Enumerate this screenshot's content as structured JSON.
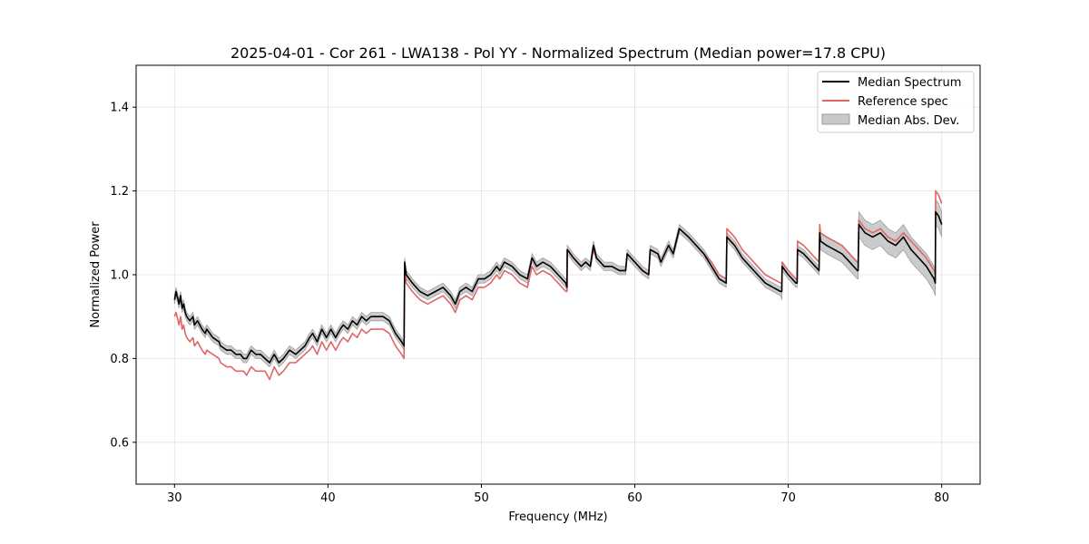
{
  "chart_data": {
    "type": "line",
    "title": "2025-04-01 - Cor 261 - LWA138 - Pol YY - Normalized Spectrum (Median power=17.8 CPU)",
    "xlabel": "Frequency (MHz)",
    "ylabel": "Normalized Power",
    "xlim": [
      27.5,
      82.5
    ],
    "ylim": [
      0.5,
      1.5
    ],
    "xticks": [
      30,
      40,
      50,
      60,
      70,
      80
    ],
    "xtick_labels": [
      "30",
      "40",
      "50",
      "60",
      "70",
      "80"
    ],
    "yticks": [
      0.6,
      0.8,
      1.0,
      1.2,
      1.4
    ],
    "ytick_labels": [
      "0.6",
      "0.8",
      "1.0",
      "1.2",
      "1.4"
    ],
    "grid": true,
    "legend_position": "top-right",
    "colors": {
      "median": "#000000",
      "reference": "#e06666",
      "band": "#c8c8c8",
      "band_edge": "#9e9e9e"
    },
    "series": [
      {
        "name": "Median Spectrum",
        "x": [
          30.0,
          30.1,
          30.3,
          30.4,
          30.5,
          30.6,
          30.7,
          30.8,
          31.0,
          31.2,
          31.3,
          31.5,
          31.8,
          32.0,
          32.1,
          32.5,
          32.9,
          33.0,
          33.4,
          33.7,
          34.0,
          34.3,
          34.5,
          34.7,
          35.0,
          35.3,
          35.6,
          35.9,
          36.2,
          36.5,
          36.8,
          37.1,
          37.5,
          37.9,
          38.2,
          38.5,
          38.8,
          39.0,
          39.3,
          39.6,
          39.9,
          40.2,
          40.5,
          40.8,
          41.0,
          41.3,
          41.6,
          41.9,
          42.2,
          42.5,
          42.8,
          43.2,
          43.6,
          44.0,
          44.4,
          44.8,
          44.96,
          45.0,
          45.1,
          45.5,
          46.0,
          46.5,
          47.0,
          47.5,
          48.0,
          48.3,
          48.6,
          49.0,
          49.4,
          49.8,
          50.2,
          50.6,
          51.0,
          51.2,
          51.5,
          52.0,
          52.5,
          53.0,
          53.3,
          53.6,
          54.0,
          54.5,
          55.0,
          55.5,
          55.58,
          55.6,
          56.0,
          56.5,
          56.8,
          57.1,
          57.3,
          57.5,
          58.0,
          58.5,
          59.0,
          59.4,
          59.5,
          60.0,
          60.5,
          60.9,
          61.0,
          61.5,
          61.7,
          62.2,
          62.5,
          62.9,
          63.5,
          64.0,
          64.5,
          65.0,
          65.5,
          65.95,
          66.0,
          66.5,
          67.0,
          67.5,
          68.0,
          68.5,
          69.0,
          69.5,
          69.58,
          69.6,
          70.0,
          70.5,
          70.58,
          70.6,
          71.0,
          71.5,
          72.0,
          72.05,
          72.1,
          72.5,
          73.0,
          73.5,
          74.0,
          74.5,
          74.55,
          74.6,
          75.0,
          75.5,
          76.0,
          76.5,
          77.0,
          77.5,
          78.0,
          78.5,
          79.0,
          79.5,
          79.58,
          79.6,
          79.8,
          80.0
        ],
        "values": [
          0.94,
          0.96,
          0.93,
          0.95,
          0.92,
          0.93,
          0.91,
          0.9,
          0.89,
          0.9,
          0.88,
          0.89,
          0.87,
          0.86,
          0.87,
          0.85,
          0.84,
          0.83,
          0.82,
          0.82,
          0.81,
          0.81,
          0.8,
          0.8,
          0.82,
          0.81,
          0.81,
          0.8,
          0.79,
          0.81,
          0.79,
          0.8,
          0.82,
          0.81,
          0.82,
          0.83,
          0.85,
          0.86,
          0.84,
          0.87,
          0.85,
          0.87,
          0.85,
          0.87,
          0.88,
          0.87,
          0.89,
          0.88,
          0.9,
          0.89,
          0.9,
          0.9,
          0.9,
          0.89,
          0.86,
          0.84,
          0.83,
          1.03,
          1.0,
          0.98,
          0.96,
          0.95,
          0.96,
          0.97,
          0.95,
          0.93,
          0.96,
          0.97,
          0.96,
          0.99,
          0.99,
          1.0,
          1.02,
          1.01,
          1.03,
          1.02,
          1.0,
          0.99,
          1.04,
          1.02,
          1.03,
          1.02,
          1.0,
          0.98,
          0.97,
          1.06,
          1.04,
          1.02,
          1.03,
          1.02,
          1.07,
          1.04,
          1.02,
          1.02,
          1.01,
          1.01,
          1.05,
          1.03,
          1.01,
          1.0,
          1.06,
          1.05,
          1.03,
          1.07,
          1.05,
          1.11,
          1.09,
          1.07,
          1.05,
          1.02,
          0.99,
          0.98,
          1.09,
          1.07,
          1.04,
          1.02,
          1.0,
          0.98,
          0.97,
          0.96,
          0.96,
          1.02,
          1.0,
          0.98,
          0.98,
          1.06,
          1.05,
          1.03,
          1.01,
          1.1,
          1.08,
          1.07,
          1.06,
          1.05,
          1.03,
          1.01,
          1.01,
          1.12,
          1.1,
          1.09,
          1.1,
          1.08,
          1.07,
          1.09,
          1.06,
          1.04,
          1.02,
          0.99,
          0.98,
          1.15,
          1.14,
          1.12
        ]
      },
      {
        "name": "Reference spec",
        "x": [
          30.0,
          30.1,
          30.3,
          30.4,
          30.5,
          30.6,
          30.7,
          30.8,
          31.0,
          31.2,
          31.3,
          31.5,
          31.8,
          32.0,
          32.1,
          32.5,
          32.9,
          33.0,
          33.4,
          33.7,
          34.0,
          34.3,
          34.5,
          34.7,
          35.0,
          35.3,
          35.6,
          35.9,
          36.2,
          36.5,
          36.8,
          37.1,
          37.5,
          37.9,
          38.2,
          38.5,
          38.8,
          39.0,
          39.3,
          39.6,
          39.9,
          40.2,
          40.5,
          40.8,
          41.0,
          41.3,
          41.6,
          41.9,
          42.2,
          42.5,
          42.8,
          43.2,
          43.6,
          44.0,
          44.4,
          44.8,
          44.96,
          45.0,
          45.1,
          45.5,
          46.0,
          46.5,
          47.0,
          47.5,
          48.0,
          48.3,
          48.6,
          49.0,
          49.4,
          49.8,
          50.2,
          50.6,
          51.0,
          51.2,
          51.5,
          52.0,
          52.5,
          53.0,
          53.3,
          53.6,
          54.0,
          54.5,
          55.0,
          55.5,
          55.58,
          55.6,
          56.0,
          56.5,
          56.8,
          57.1,
          57.3,
          57.5,
          58.0,
          58.5,
          59.0,
          59.4,
          59.5,
          60.0,
          60.5,
          60.9,
          61.0,
          61.5,
          61.7,
          62.2,
          62.5,
          62.9,
          63.5,
          64.0,
          64.5,
          65.0,
          65.5,
          65.95,
          66.0,
          66.5,
          67.0,
          67.5,
          68.0,
          68.5,
          69.0,
          69.5,
          69.58,
          69.6,
          70.0,
          70.5,
          70.58,
          70.6,
          71.0,
          71.5,
          72.0,
          72.05,
          72.1,
          72.5,
          73.0,
          73.5,
          74.0,
          74.5,
          74.55,
          74.6,
          75.0,
          75.5,
          76.0,
          76.5,
          77.0,
          77.5,
          78.0,
          78.5,
          79.0,
          79.5,
          79.58,
          79.6,
          79.8,
          80.0
        ],
        "values": [
          0.9,
          0.91,
          0.88,
          0.9,
          0.87,
          0.88,
          0.86,
          0.85,
          0.84,
          0.85,
          0.83,
          0.84,
          0.82,
          0.81,
          0.82,
          0.81,
          0.8,
          0.79,
          0.78,
          0.78,
          0.77,
          0.77,
          0.77,
          0.76,
          0.78,
          0.77,
          0.77,
          0.77,
          0.75,
          0.78,
          0.76,
          0.77,
          0.79,
          0.79,
          0.8,
          0.81,
          0.82,
          0.83,
          0.81,
          0.84,
          0.82,
          0.84,
          0.82,
          0.84,
          0.85,
          0.84,
          0.86,
          0.85,
          0.87,
          0.86,
          0.87,
          0.87,
          0.87,
          0.86,
          0.83,
          0.81,
          0.8,
          1.01,
          0.98,
          0.96,
          0.94,
          0.93,
          0.94,
          0.95,
          0.93,
          0.91,
          0.94,
          0.95,
          0.94,
          0.97,
          0.97,
          0.98,
          1.0,
          0.99,
          1.01,
          1.0,
          0.98,
          0.97,
          1.02,
          1.0,
          1.01,
          1.0,
          0.98,
          0.96,
          0.96,
          1.06,
          1.04,
          1.02,
          1.03,
          1.02,
          1.06,
          1.04,
          1.02,
          1.02,
          1.01,
          1.01,
          1.05,
          1.03,
          1.01,
          1.0,
          1.06,
          1.05,
          1.03,
          1.07,
          1.05,
          1.11,
          1.09,
          1.07,
          1.05,
          1.03,
          1.0,
          0.99,
          1.11,
          1.09,
          1.06,
          1.04,
          1.02,
          1.0,
          0.99,
          0.98,
          0.98,
          1.03,
          1.01,
          0.99,
          0.99,
          1.08,
          1.07,
          1.05,
          1.03,
          1.12,
          1.1,
          1.09,
          1.08,
          1.07,
          1.05,
          1.03,
          1.03,
          1.13,
          1.11,
          1.1,
          1.11,
          1.09,
          1.08,
          1.1,
          1.08,
          1.06,
          1.04,
          1.01,
          1.0,
          1.2,
          1.19,
          1.17
        ]
      },
      {
        "name": "Median Abs. Dev.",
        "type": "band",
        "x": [
          30.0,
          30.1,
          30.3,
          30.4,
          30.5,
          30.6,
          30.7,
          30.8,
          31.0,
          31.2,
          31.3,
          31.5,
          31.8,
          32.0,
          32.1,
          32.5,
          32.9,
          33.0,
          33.4,
          33.7,
          34.0,
          34.3,
          34.5,
          34.7,
          35.0,
          35.3,
          35.6,
          35.9,
          36.2,
          36.5,
          36.8,
          37.1,
          37.5,
          37.9,
          38.2,
          38.5,
          38.8,
          39.0,
          39.3,
          39.6,
          39.9,
          40.2,
          40.5,
          40.8,
          41.0,
          41.3,
          41.6,
          41.9,
          42.2,
          42.5,
          42.8,
          43.2,
          43.6,
          44.0,
          44.4,
          44.8,
          44.96,
          45.0,
          45.1,
          45.5,
          46.0,
          46.5,
          47.0,
          47.5,
          48.0,
          48.3,
          48.6,
          49.0,
          49.4,
          49.8,
          50.2,
          50.6,
          51.0,
          51.2,
          51.5,
          52.0,
          52.5,
          53.0,
          53.3,
          53.6,
          54.0,
          54.5,
          55.0,
          55.5,
          55.58,
          55.6,
          56.0,
          56.5,
          56.8,
          57.1,
          57.3,
          57.5,
          58.0,
          58.5,
          59.0,
          59.4,
          59.5,
          60.0,
          60.5,
          60.9,
          61.0,
          61.5,
          61.7,
          62.2,
          62.5,
          62.9,
          63.5,
          64.0,
          64.5,
          65.0,
          65.5,
          65.95,
          66.0,
          66.5,
          67.0,
          67.5,
          68.0,
          68.5,
          69.0,
          69.5,
          69.58,
          69.6,
          70.0,
          70.5,
          70.58,
          70.6,
          71.0,
          71.5,
          72.0,
          72.05,
          72.1,
          72.5,
          73.0,
          73.5,
          74.0,
          74.5,
          74.55,
          74.6,
          75.0,
          75.5,
          76.0,
          76.5,
          77.0,
          77.5,
          78.0,
          78.5,
          79.0,
          79.5,
          79.58,
          79.6,
          79.8,
          80.0
        ],
        "lower": [
          0.93,
          0.95,
          0.92,
          0.94,
          0.91,
          0.92,
          0.9,
          0.89,
          0.88,
          0.89,
          0.87,
          0.88,
          0.86,
          0.85,
          0.86,
          0.84,
          0.83,
          0.82,
          0.81,
          0.81,
          0.8,
          0.8,
          0.79,
          0.79,
          0.81,
          0.8,
          0.8,
          0.79,
          0.78,
          0.8,
          0.78,
          0.79,
          0.81,
          0.8,
          0.81,
          0.82,
          0.84,
          0.85,
          0.83,
          0.86,
          0.84,
          0.86,
          0.84,
          0.86,
          0.87,
          0.86,
          0.88,
          0.87,
          0.89,
          0.88,
          0.89,
          0.89,
          0.89,
          0.88,
          0.85,
          0.83,
          0.82,
          1.02,
          0.99,
          0.97,
          0.95,
          0.94,
          0.95,
          0.96,
          0.94,
          0.92,
          0.95,
          0.96,
          0.95,
          0.98,
          0.98,
          0.99,
          1.01,
          1.0,
          1.02,
          1.01,
          0.99,
          0.98,
          1.03,
          1.01,
          1.02,
          1.01,
          0.99,
          0.97,
          0.96,
          1.05,
          1.03,
          1.01,
          1.02,
          1.01,
          1.06,
          1.03,
          1.01,
          1.01,
          1.0,
          1.0,
          1.04,
          1.02,
          1.0,
          0.99,
          1.05,
          1.04,
          1.02,
          1.06,
          1.04,
          1.1,
          1.08,
          1.06,
          1.04,
          1.01,
          0.98,
          0.97,
          1.08,
          1.06,
          1.03,
          1.01,
          0.99,
          0.97,
          0.96,
          0.95,
          0.94,
          1.01,
          0.99,
          0.97,
          0.97,
          1.05,
          1.04,
          1.02,
          1.0,
          1.08,
          1.06,
          1.05,
          1.04,
          1.03,
          1.01,
          0.99,
          0.99,
          1.09,
          1.07,
          1.06,
          1.07,
          1.05,
          1.04,
          1.06,
          1.03,
          1.01,
          0.99,
          0.96,
          0.95,
          1.12,
          1.11,
          1.09
        ],
        "upper": [
          0.95,
          0.97,
          0.94,
          0.96,
          0.93,
          0.94,
          0.92,
          0.91,
          0.9,
          0.91,
          0.89,
          0.9,
          0.88,
          0.87,
          0.88,
          0.86,
          0.85,
          0.84,
          0.83,
          0.83,
          0.82,
          0.82,
          0.81,
          0.81,
          0.83,
          0.82,
          0.82,
          0.81,
          0.8,
          0.82,
          0.8,
          0.81,
          0.83,
          0.82,
          0.83,
          0.84,
          0.86,
          0.87,
          0.85,
          0.88,
          0.86,
          0.88,
          0.86,
          0.88,
          0.89,
          0.88,
          0.9,
          0.89,
          0.91,
          0.9,
          0.91,
          0.91,
          0.91,
          0.9,
          0.87,
          0.85,
          0.84,
          1.04,
          1.01,
          0.99,
          0.97,
          0.96,
          0.97,
          0.98,
          0.96,
          0.94,
          0.97,
          0.98,
          0.97,
          1.0,
          1.0,
          1.01,
          1.03,
          1.02,
          1.04,
          1.03,
          1.01,
          1.0,
          1.05,
          1.03,
          1.04,
          1.03,
          1.01,
          0.99,
          0.98,
          1.07,
          1.05,
          1.03,
          1.04,
          1.03,
          1.08,
          1.05,
          1.03,
          1.03,
          1.02,
          1.02,
          1.06,
          1.04,
          1.02,
          1.01,
          1.07,
          1.06,
          1.04,
          1.08,
          1.06,
          1.12,
          1.1,
          1.08,
          1.06,
          1.03,
          1.0,
          0.99,
          1.1,
          1.08,
          1.05,
          1.03,
          1.01,
          0.99,
          0.98,
          0.97,
          0.98,
          1.03,
          1.01,
          0.99,
          0.99,
          1.07,
          1.06,
          1.04,
          1.02,
          1.12,
          1.1,
          1.09,
          1.08,
          1.07,
          1.05,
          1.03,
          1.03,
          1.15,
          1.13,
          1.12,
          1.13,
          1.11,
          1.1,
          1.12,
          1.09,
          1.07,
          1.05,
          1.02,
          1.01,
          1.18,
          1.17,
          1.15
        ]
      }
    ]
  }
}
